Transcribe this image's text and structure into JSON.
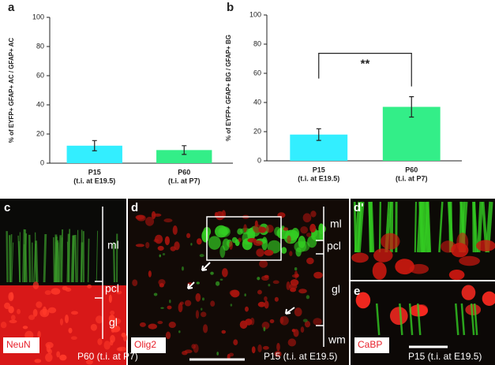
{
  "chart_data": [
    {
      "type": "bar",
      "panel": "a",
      "ylabel": "% of EYFP+ GFAP+ AC / GFAP+ AC",
      "categories": [
        "P15",
        "P60"
      ],
      "category_notes": [
        "(t.i. at E19.5)",
        "(t.i. at P7)"
      ],
      "values": [
        12,
        9
      ],
      "errors": [
        3.5,
        3
      ],
      "colors": [
        "#33eeff",
        "#33ee88"
      ],
      "ylim": [
        0,
        100
      ],
      "yticks": [
        0,
        20,
        40,
        60,
        80,
        100
      ]
    },
    {
      "type": "bar",
      "panel": "b",
      "ylabel": "% of EYFP+ GFAP+ BG / GFAP+ BG",
      "categories": [
        "P15",
        "P60"
      ],
      "category_notes": [
        "(t.i. at E19.5)",
        "(t.i. at P7)"
      ],
      "values": [
        18,
        37
      ],
      "errors": [
        4,
        7
      ],
      "colors": [
        "#33eeff",
        "#33ee88"
      ],
      "ylim": [
        0,
        100
      ],
      "yticks": [
        0,
        20,
        40,
        60,
        80,
        100
      ],
      "annotation": "**"
    }
  ],
  "panels": [
    {
      "label": "c",
      "stain": "NeuN",
      "note": "P60 (t.i. at P7)",
      "layers": [
        "ml",
        "pcl",
        "gl"
      ]
    },
    {
      "label": "d",
      "stain": "Olig2",
      "note": "P15 (t.i. at E19.5)",
      "layers": [
        "ml",
        "pcl",
        "gl",
        "wm"
      ]
    },
    {
      "label": "d'"
    },
    {
      "label": "e",
      "stain": "CaBP",
      "note": "P15 (t.i. at E19.5)"
    }
  ]
}
